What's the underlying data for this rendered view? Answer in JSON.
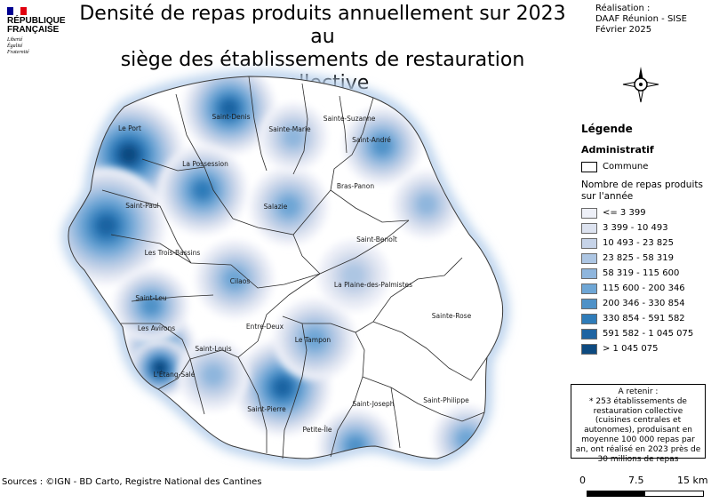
{
  "logo": {
    "title": "RÉPUBLIQUE\nFRANÇAISE",
    "motto": "Liberté\nÉgalité\nFraternité",
    "flag_colors": [
      "#000091",
      "#ffffff",
      "#e1000f"
    ]
  },
  "title": "Densité de repas produits annuellement sur 2023 au\nsiège des établissements de restauration collective",
  "credits": {
    "text": "Réalisation :\nDAAF Réunion - SISE\nFévrier 2025"
  },
  "map": {
    "communes": [
      {
        "name": "Saint-Denis"
      },
      {
        "name": "Sainte-Suzanne"
      },
      {
        "name": "Sainte-Marie"
      },
      {
        "name": "Le Port"
      },
      {
        "name": "Saint-André"
      },
      {
        "name": "La Possession"
      },
      {
        "name": "Bras-Panon"
      },
      {
        "name": "Saint-Paul"
      },
      {
        "name": "Salazie"
      },
      {
        "name": "Saint-Benoît"
      },
      {
        "name": "Les Trois-Bassins"
      },
      {
        "name": "Cilaos"
      },
      {
        "name": "La Plaine-des-Palmistes"
      },
      {
        "name": "Saint-Leu"
      },
      {
        "name": "Sainte-Rose"
      },
      {
        "name": "Entre-Deux"
      },
      {
        "name": "Les Avirons"
      },
      {
        "name": "Le Tampon"
      },
      {
        "name": "Saint-Louis"
      },
      {
        "name": "L'Étang-Salé"
      },
      {
        "name": "Saint-Joseph"
      },
      {
        "name": "Saint-Philippe"
      },
      {
        "name": "Saint-Pierre"
      },
      {
        "name": "Petite-Île"
      }
    ],
    "hotspots": [
      {
        "commune": "Le Port",
        "class": 9
      },
      {
        "commune": "Saint-Paul",
        "class": 8
      },
      {
        "commune": "Saint-Denis",
        "class": 8
      },
      {
        "commune": "Saint-Pierre",
        "class": 8
      },
      {
        "commune": "Les Avirons",
        "class": 8
      },
      {
        "commune": "L'Étang-Salé",
        "class": 9
      },
      {
        "commune": "La Possession",
        "class": 7
      },
      {
        "commune": "Saint-André",
        "class": 6
      },
      {
        "commune": "Saint-Leu",
        "class": 6
      },
      {
        "commune": "Salazie",
        "class": 5
      },
      {
        "commune": "Cilaos",
        "class": 5
      },
      {
        "commune": "Le Tampon",
        "class": 5
      },
      {
        "commune": "Petite-Île",
        "class": 6
      },
      {
        "commune": "Saint-Philippe",
        "class": 5
      },
      {
        "commune": "Saint-Louis",
        "class": 4
      },
      {
        "commune": "Sainte-Marie",
        "class": 4
      },
      {
        "commune": "La Plaine-des-Palmistes",
        "class": 3
      },
      {
        "commune": "Bras-Panon",
        "class": 4
      }
    ]
  },
  "legend": {
    "title": "Légende",
    "admin_section": "Administratif",
    "commune_label": "Commune",
    "meals_title": "Nombre de repas produits\nsur l'année",
    "classes": [
      {
        "label": "<= 3 399",
        "color": "#eef0f8"
      },
      {
        "label": "3 399 - 10 493",
        "color": "#dde3f0"
      },
      {
        "label": "10 493 - 23 825",
        "color": "#c6d3e8"
      },
      {
        "label": "23 825 - 58 319",
        "color": "#adc6e3"
      },
      {
        "label": "58 319 - 115 600",
        "color": "#8fb6dd"
      },
      {
        "label": "115 600 - 200 346",
        "color": "#6ea6d5"
      },
      {
        "label": "200 346 - 330 854",
        "color": "#4f92c8"
      },
      {
        "label": "330 854 - 591 582",
        "color": "#2f7cb9"
      },
      {
        "label": "591 582 - 1 045 075",
        "color": "#1e64a2"
      },
      {
        "label": "> 1 045 075",
        "color": "#0d4a80"
      }
    ]
  },
  "note": {
    "heading": "A retenir :",
    "body": "* 253 établissements de restauration collective (cuisines centrales et autonomes), produisant en moyenne 100 000 repas par an, ont réalisé en 2023 près de 30 millions de repas"
  },
  "sources": "Sources : ©IGN - BD Carto, Registre National des Cantines",
  "scale": {
    "labels": [
      "0",
      "7.5",
      "15 km"
    ]
  }
}
